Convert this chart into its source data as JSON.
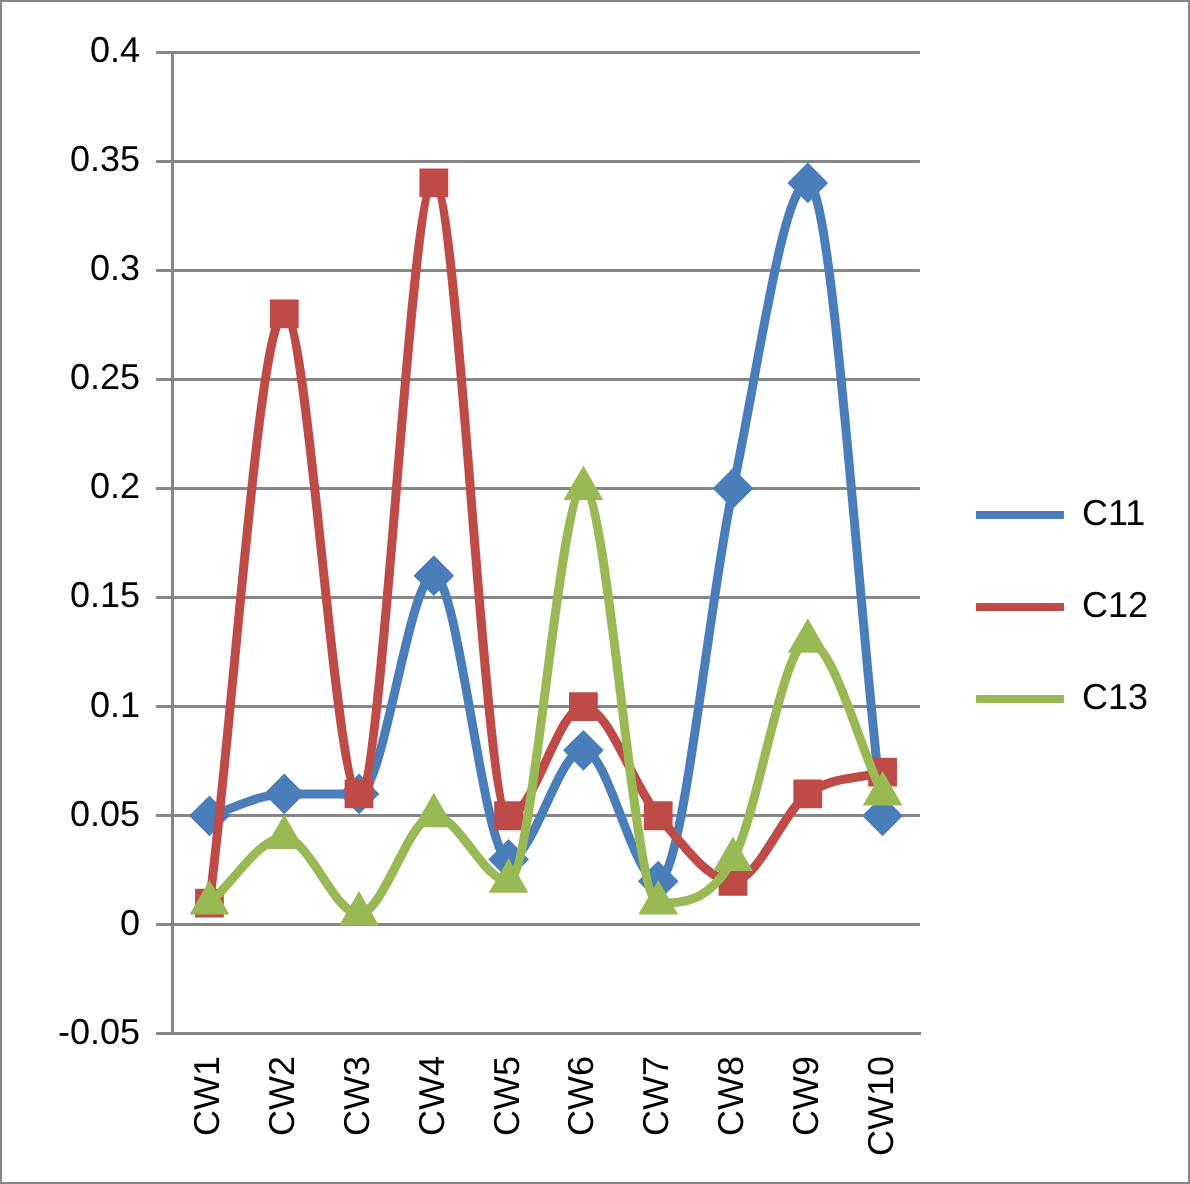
{
  "chart_data": {
    "type": "line",
    "categories": [
      "CW1",
      "CW2",
      "CW3",
      "CW4",
      "CW5",
      "CW6",
      "CW7",
      "CW8",
      "CW9",
      "CW10"
    ],
    "series": [
      {
        "name": "C11",
        "color": "#4a7ebb",
        "marker": "diamond",
        "values": [
          0.05,
          0.06,
          0.06,
          0.16,
          0.03,
          0.08,
          0.02,
          0.2,
          0.34,
          0.05
        ]
      },
      {
        "name": "C12",
        "color": "#be4b48",
        "marker": "square",
        "values": [
          0.01,
          0.28,
          0.06,
          0.34,
          0.05,
          0.1,
          0.05,
          0.02,
          0.06,
          0.07
        ]
      },
      {
        "name": "C13",
        "color": "#98b954",
        "marker": "triangle",
        "values": [
          0.01,
          0.04,
          0.005,
          0.05,
          0.02,
          0.2,
          0.01,
          0.03,
          0.13,
          0.06
        ]
      }
    ],
    "ylim": [
      -0.05,
      0.4
    ],
    "yticks": [
      -0.05,
      0,
      0.05,
      0.1,
      0.15,
      0.2,
      0.25,
      0.3,
      0.35,
      0.4
    ],
    "grid": "y",
    "legend": "right"
  }
}
